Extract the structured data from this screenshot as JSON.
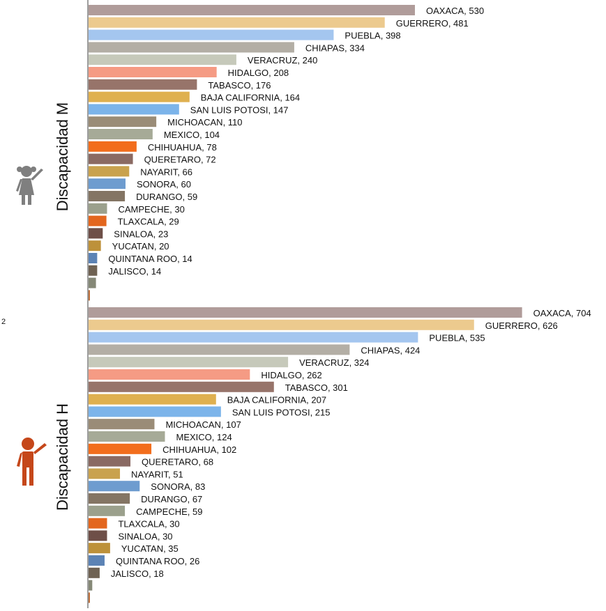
{
  "chart_data": [
    {
      "type": "bar",
      "orientation": "horizontal",
      "title": "Discapacidad M",
      "icon": "girl-icon",
      "icon_color": "#7f7f7f",
      "categories": [
        "OAXACA",
        "GUERRERO",
        "PUEBLA",
        "CHIAPAS",
        "VERACRUZ",
        "HIDALGO",
        "TABASCO",
        "BAJA CALIFORNIA",
        "SAN LUIS POTOSI",
        "MICHOACAN",
        "MEXICO",
        "CHIHUAHUA",
        "QUERETARO",
        "NAYARIT",
        "SONORA",
        "DURANGO",
        "CAMPECHE",
        "TLAXCALA",
        "SINALOA",
        "YUCATAN",
        "QUINTANA ROO",
        "JALISCO",
        "",
        ""
      ],
      "values": [
        530,
        481,
        398,
        334,
        240,
        208,
        176,
        164,
        147,
        110,
        104,
        78,
        72,
        66,
        60,
        59,
        30,
        29,
        23,
        20,
        14,
        14,
        12,
        2
      ],
      "labels": [
        "OAXACA, 530",
        "GUERRERO, 481",
        "PUEBLA, 398",
        "CHIAPAS, 334",
        "VERACRUZ, 240",
        "HIDALGO, 208",
        "TABASCO, 176",
        "BAJA CALIFORNIA, 164",
        "SAN LUIS POTOSI, 147",
        "MICHOACAN, 110",
        "MEXICO, 104",
        "CHIHUAHUA, 78",
        "QUERETARO, 72",
        "NAYARIT, 66",
        "SONORA, 60",
        "DURANGO, 59",
        "CAMPECHE, 30",
        "TLAXCALA, 29",
        "SINALOA, 23",
        "YUCATAN, 20",
        "QUINTANA ROO, 14",
        "JALISCO, 14",
        "",
        ""
      ],
      "colors": [
        "#b09c9a",
        "#ecca8e",
        "#a4c6ef",
        "#b3aea5",
        "#c6c9ba",
        "#f59b84",
        "#97746a",
        "#dfb04f",
        "#7cb4ea",
        "#9a8c77",
        "#a6aa97",
        "#f26d1c",
        "#8a6a63",
        "#c9a24e",
        "#6e9ccf",
        "#847564",
        "#9ba08c",
        "#e3661e",
        "#6e4f48",
        "#bd913a",
        "#5c83b5",
        "#6f6253",
        "#858877",
        "#b45a1e"
      ]
    },
    {
      "type": "bar",
      "orientation": "horizontal",
      "title": "Discapacidad H",
      "icon": "boy-icon",
      "icon_color": "#c5471a",
      "categories": [
        "OAXACA",
        "GUERRERO",
        "PUEBLA",
        "CHIAPAS",
        "VERACRUZ",
        "HIDALGO",
        "TABASCO",
        "BAJA CALIFORNIA",
        "SAN LUIS POTOSI",
        "MICHOACAN",
        "MEXICO",
        "CHIHUAHUA",
        "QUERETARO",
        "NAYARIT",
        "SONORA",
        "DURANGO",
        "CAMPECHE",
        "TLAXCALA",
        "SINALOA",
        "YUCATAN",
        "QUINTANA ROO",
        "JALISCO",
        "",
        ""
      ],
      "values": [
        704,
        626,
        535,
        424,
        324,
        262,
        301,
        207,
        215,
        107,
        124,
        102,
        68,
        51,
        83,
        67,
        59,
        30,
        30,
        35,
        26,
        18,
        6,
        2
      ],
      "labels": [
        "OAXACA, 704",
        "GUERRERO, 626",
        "PUEBLA, 535",
        "CHIAPAS, 424",
        "VERACRUZ, 324",
        "HIDALGO, 262",
        "TABASCO, 301",
        "BAJA CALIFORNIA, 207",
        "SAN LUIS POTOSI, 215",
        "MICHOACAN, 107",
        "MEXICO, 124",
        "CHIHUAHUA, 102",
        "QUERETARO, 68",
        "NAYARIT, 51",
        "SONORA, 83",
        "DURANGO, 67",
        "CAMPECHE, 59",
        "TLAXCALA, 30",
        "SINALOA, 30",
        "YUCATAN, 35",
        "QUINTANA ROO, 26",
        "JALISCO, 18",
        "",
        ""
      ],
      "colors": [
        "#b09c9a",
        "#ecca8e",
        "#a4c6ef",
        "#b3aea5",
        "#c6c9ba",
        "#f59b84",
        "#97746a",
        "#dfb04f",
        "#7cb4ea",
        "#9a8c77",
        "#a6aa97",
        "#f26d1c",
        "#8a6a63",
        "#c9a24e",
        "#6e9ccf",
        "#847564",
        "#9ba08c",
        "#e3661e",
        "#6e4f48",
        "#bd913a",
        "#5c83b5",
        "#6f6253",
        "#858877",
        "#b45a1e"
      ]
    }
  ],
  "side_note": "2",
  "axis_color": "#7f7f7f"
}
